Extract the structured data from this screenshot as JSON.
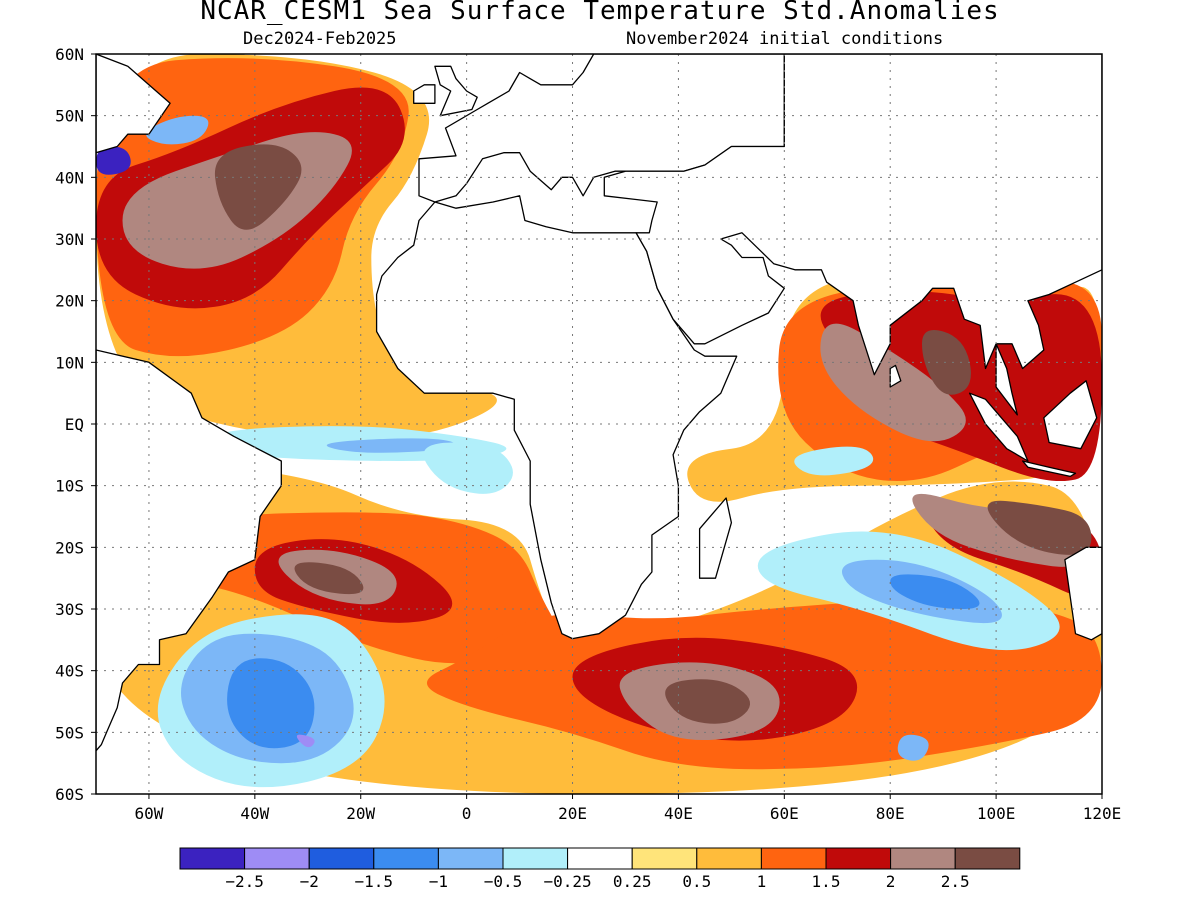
{
  "title": "NCAR_CESM1 Sea Surface Temperature Std.Anomalies",
  "subtitle_left": "Dec2024-Feb2025",
  "subtitle_right": "November2024 initial conditions",
  "map": {
    "lon_range": [
      -70,
      120
    ],
    "lat_range": [
      -60,
      60
    ],
    "land_color": "#ffffff",
    "grid": true,
    "lat_labels": [
      "60N",
      "50N",
      "40N",
      "30N",
      "20N",
      "10N",
      "EQ",
      "10S",
      "20S",
      "30S",
      "40S",
      "50S",
      "60S"
    ],
    "lon_labels": [
      "60W",
      "40W",
      "20W",
      "0",
      "20E",
      "40E",
      "60E",
      "80E",
      "100E",
      "120E"
    ],
    "lon_values": [
      -60,
      -40,
      -20,
      0,
      20,
      40,
      60,
      80,
      100,
      120
    ]
  },
  "colorbar": {
    "colors": [
      "#3b22c0",
      "#9e8cf5",
      "#1f5ddf",
      "#3b8cf0",
      "#7cb7f7",
      "#b1effa",
      "#ffffff",
      "#ffe47a",
      "#ffbc3b",
      "#ff6410",
      "#c00a0a",
      "#b08780",
      "#7a4c43"
    ],
    "labels": [
      "-2.5",
      "-2",
      "-1.5",
      "-1",
      "-0.5",
      "-0.25",
      "0.25",
      "0.5",
      "1",
      "1.5",
      "2",
      "2.5"
    ]
  },
  "anomaly_regions": [
    {
      "level": 0.5,
      "pts": [
        [
          -70,
          60
        ],
        [
          -30,
          60
        ],
        [
          -5,
          54
        ],
        [
          -10,
          40
        ],
        [
          -18,
          32
        ],
        [
          -18,
          22
        ],
        [
          -16,
          14
        ],
        [
          -5,
          7
        ],
        [
          10,
          4
        ],
        [
          -10,
          -3
        ],
        [
          -40,
          -2
        ],
        [
          -70,
          6
        ]
      ]
    },
    {
      "level": 0.5,
      "pts": [
        [
          -70,
          -5
        ],
        [
          -30,
          -8
        ],
        [
          -12,
          -15
        ],
        [
          10,
          -16
        ],
        [
          14,
          -28
        ],
        [
          18,
          -36
        ],
        [
          35,
          -34
        ],
        [
          60,
          -26
        ],
        [
          78,
          -16
        ],
        [
          100,
          -8
        ],
        [
          120,
          -12
        ],
        [
          120,
          -60
        ],
        [
          -70,
          -60
        ]
      ]
    },
    {
      "level": 0.5,
      "pts": [
        [
          40,
          -5
        ],
        [
          60,
          -3
        ],
        [
          60,
          24
        ],
        [
          95,
          24
        ],
        [
          110,
          20
        ],
        [
          120,
          24
        ],
        [
          120,
          -8
        ],
        [
          90,
          -10
        ],
        [
          60,
          -10
        ],
        [
          44,
          -14
        ]
      ]
    },
    {
      "level": 1,
      "pts": [
        [
          -70,
          58
        ],
        [
          -40,
          60
        ],
        [
          -10,
          56
        ],
        [
          -12,
          44
        ],
        [
          -22,
          34
        ],
        [
          -25,
          22
        ],
        [
          -35,
          14
        ],
        [
          -55,
          10
        ],
        [
          -70,
          14
        ]
      ]
    },
    {
      "level": 1,
      "pts": [
        [
          -55,
          -15
        ],
        [
          -15,
          -14
        ],
        [
          0,
          -16
        ],
        [
          10,
          -20
        ],
        [
          14,
          -28
        ],
        [
          18,
          -34
        ],
        [
          0,
          -40
        ],
        [
          -20,
          -36
        ],
        [
          -40,
          -28
        ],
        [
          -55,
          -25
        ]
      ]
    },
    {
      "level": 1,
      "pts": [
        [
          14,
          -30
        ],
        [
          35,
          -32
        ],
        [
          55,
          -30
        ],
        [
          90,
          -28
        ],
        [
          110,
          -30
        ],
        [
          120,
          -34
        ],
        [
          120,
          -48
        ],
        [
          100,
          -52
        ],
        [
          70,
          -56
        ],
        [
          40,
          -56
        ],
        [
          20,
          -50
        ],
        [
          0,
          -46
        ],
        [
          -10,
          -42
        ],
        [
          0,
          -38
        ]
      ]
    },
    {
      "level": 1,
      "pts": [
        [
          60,
          22
        ],
        [
          100,
          22
        ],
        [
          120,
          24
        ],
        [
          120,
          4
        ],
        [
          100,
          -4
        ],
        [
          85,
          -10
        ],
        [
          70,
          -8
        ],
        [
          58,
          2
        ]
      ]
    },
    {
      "level": 1.5,
      "pts": [
        [
          -70,
          40
        ],
        [
          -55,
          44
        ],
        [
          -35,
          52
        ],
        [
          -15,
          56
        ],
        [
          -10,
          46
        ],
        [
          -20,
          38
        ],
        [
          -30,
          30
        ],
        [
          -40,
          20
        ],
        [
          -55,
          18
        ],
        [
          -70,
          24
        ]
      ]
    },
    {
      "level": 1.5,
      "pts": [
        [
          -40,
          -20
        ],
        [
          -25,
          -18
        ],
        [
          -10,
          -22
        ],
        [
          0,
          -30
        ],
        [
          -12,
          -33
        ],
        [
          -30,
          -30
        ],
        [
          -40,
          -27
        ]
      ]
    },
    {
      "level": 1.5,
      "pts": [
        [
          20,
          -38
        ],
        [
          40,
          -34
        ],
        [
          60,
          -36
        ],
        [
          75,
          -40
        ],
        [
          72,
          -48
        ],
        [
          55,
          -52
        ],
        [
          35,
          -50
        ],
        [
          20,
          -44
        ]
      ]
    },
    {
      "level": 1.5,
      "pts": [
        [
          64,
          20
        ],
        [
          72,
          10
        ],
        [
          78,
          0
        ],
        [
          92,
          -4
        ],
        [
          110,
          -10
        ],
        [
          120,
          -8
        ],
        [
          120,
          22
        ],
        [
          100,
          20
        ],
        [
          84,
          22
        ]
      ]
    },
    {
      "level": 1.5,
      "pts": [
        [
          85,
          -12
        ],
        [
          102,
          -14
        ],
        [
          120,
          -16
        ],
        [
          120,
          -30
        ],
        [
          105,
          -24
        ],
        [
          90,
          -20
        ]
      ]
    },
    {
      "level": 2,
      "pts": [
        [
          -65,
          38
        ],
        [
          -45,
          44
        ],
        [
          -30,
          48
        ],
        [
          -20,
          46
        ],
        [
          -25,
          38
        ],
        [
          -35,
          30
        ],
        [
          -50,
          24
        ],
        [
          -65,
          28
        ]
      ]
    },
    {
      "level": 2,
      "pts": [
        [
          -38,
          -21
        ],
        [
          -25,
          -20
        ],
        [
          -12,
          -24
        ],
        [
          -15,
          -30
        ],
        [
          -30,
          -28
        ]
      ]
    },
    {
      "level": 2,
      "pts": [
        [
          28,
          -40
        ],
        [
          45,
          -38
        ],
        [
          60,
          -42
        ],
        [
          58,
          -50
        ],
        [
          40,
          -52
        ],
        [
          30,
          -46
        ]
      ]
    },
    {
      "level": 2,
      "pts": [
        [
          68,
          18
        ],
        [
          80,
          12
        ],
        [
          90,
          6
        ],
        [
          96,
          0
        ],
        [
          88,
          -4
        ],
        [
          74,
          2
        ],
        [
          66,
          10
        ]
      ]
    },
    {
      "level": 2,
      "pts": [
        [
          82,
          -10
        ],
        [
          98,
          -14
        ],
        [
          115,
          -14
        ],
        [
          118,
          -24
        ],
        [
          102,
          -22
        ],
        [
          88,
          -18
        ]
      ]
    },
    {
      "level": 2.5,
      "pts": [
        [
          -48,
          44
        ],
        [
          -36,
          46
        ],
        [
          -30,
          42
        ],
        [
          -34,
          36
        ],
        [
          -42,
          30
        ],
        [
          -47,
          36
        ]
      ]
    },
    {
      "level": 2.5,
      "pts": [
        [
          -34,
          -22
        ],
        [
          -22,
          -23
        ],
        [
          -18,
          -28
        ],
        [
          -30,
          -27
        ]
      ]
    },
    {
      "level": 2.5,
      "pts": [
        [
          36,
          -42
        ],
        [
          48,
          -41
        ],
        [
          55,
          -45
        ],
        [
          50,
          -49
        ],
        [
          40,
          -48
        ]
      ]
    },
    {
      "level": 2.5,
      "pts": [
        [
          96,
          -12
        ],
        [
          108,
          -13
        ],
        [
          118,
          -15
        ],
        [
          118,
          -22
        ],
        [
          104,
          -20
        ]
      ]
    },
    {
      "level": 2.5,
      "pts": [
        [
          86,
          16
        ],
        [
          94,
          14
        ],
        [
          96,
          6
        ],
        [
          90,
          4
        ],
        [
          86,
          10
        ]
      ]
    },
    {
      "level": -0.25,
      "pts": [
        [
          -50,
          -1
        ],
        [
          -20,
          0
        ],
        [
          0,
          -2
        ],
        [
          10,
          -4
        ],
        [
          0,
          -6
        ],
        [
          -25,
          -6
        ],
        [
          -45,
          -5
        ]
      ]
    },
    {
      "level": -0.5,
      "pts": [
        [
          -30,
          -3
        ],
        [
          -5,
          -2
        ],
        [
          0,
          -4
        ],
        [
          -20,
          -5
        ]
      ]
    },
    {
      "level": -0.25,
      "pts": [
        [
          -50,
          -33
        ],
        [
          -30,
          -30
        ],
        [
          -20,
          -34
        ],
        [
          -14,
          -45
        ],
        [
          -20,
          -56
        ],
        [
          -40,
          -60
        ],
        [
          -55,
          -55
        ],
        [
          -60,
          -45
        ]
      ]
    },
    {
      "level": -0.5,
      "pts": [
        [
          -48,
          -34
        ],
        [
          -34,
          -34
        ],
        [
          -24,
          -38
        ],
        [
          -20,
          -48
        ],
        [
          -28,
          -55
        ],
        [
          -42,
          -55
        ],
        [
          -52,
          -50
        ],
        [
          -55,
          -42
        ]
      ]
    },
    {
      "level": -1,
      "pts": [
        [
          -44,
          -38
        ],
        [
          -34,
          -38
        ],
        [
          -28,
          -44
        ],
        [
          -30,
          -52
        ],
        [
          -40,
          -53
        ],
        [
          -46,
          -47
        ]
      ]
    },
    {
      "level": -2,
      "pts": [
        [
          -33,
          -50
        ],
        [
          -28,
          -51
        ],
        [
          -30,
          -53
        ]
      ]
    },
    {
      "level": -0.25,
      "pts": [
        [
          55,
          -20
        ],
        [
          80,
          -16
        ],
        [
          105,
          -26
        ],
        [
          115,
          -34
        ],
        [
          100,
          -38
        ],
        [
          75,
          -30
        ],
        [
          55,
          -26
        ]
      ]
    },
    {
      "level": -0.5,
      "pts": [
        [
          70,
          -22
        ],
        [
          85,
          -22
        ],
        [
          100,
          -28
        ],
        [
          102,
          -33
        ],
        [
          85,
          -31
        ],
        [
          72,
          -27
        ]
      ]
    },
    {
      "level": -1,
      "pts": [
        [
          80,
          -24
        ],
        [
          92,
          -25
        ],
        [
          99,
          -30
        ],
        [
          88,
          -30
        ],
        [
          80,
          -27
        ]
      ]
    },
    {
      "level": -0.25,
      "pts": [
        [
          -10,
          -3
        ],
        [
          5,
          -3
        ],
        [
          10,
          -8
        ],
        [
          5,
          -12
        ],
        [
          -5,
          -10
        ]
      ]
    },
    {
      "level": -0.5,
      "pts": [
        [
          -62,
          47
        ],
        [
          -55,
          50
        ],
        [
          -48,
          50
        ],
        [
          -50,
          46
        ],
        [
          -57,
          45
        ]
      ]
    },
    {
      "level": -2.5,
      "pts": [
        [
          -70,
          45
        ],
        [
          -64,
          45
        ],
        [
          -63,
          41
        ],
        [
          -70,
          40
        ]
      ]
    },
    {
      "level": -0.25,
      "pts": [
        [
          60,
          -5
        ],
        [
          75,
          -3
        ],
        [
          78,
          -7
        ],
        [
          65,
          -9
        ]
      ]
    },
    {
      "level": -0.5,
      "pts": [
        [
          82,
          -50
        ],
        [
          88,
          -51
        ],
        [
          86,
          -55
        ],
        [
          81,
          -54
        ]
      ]
    }
  ]
}
